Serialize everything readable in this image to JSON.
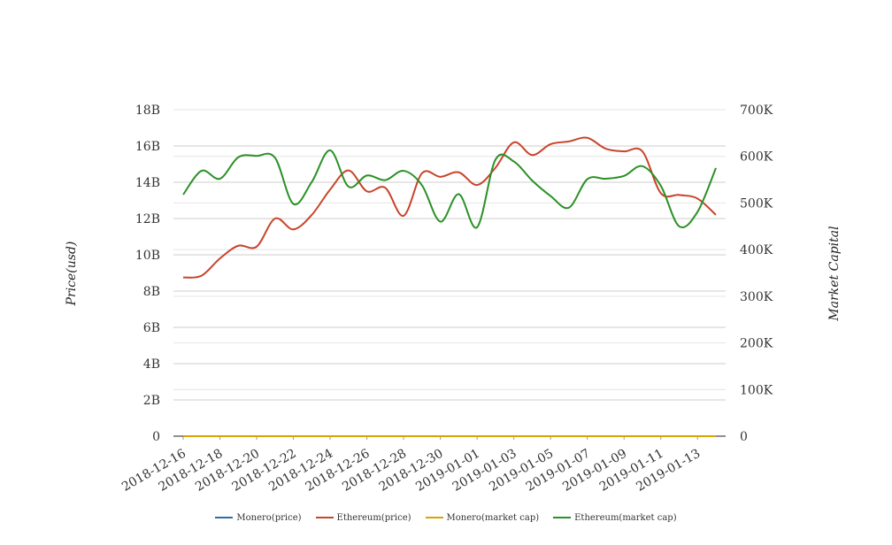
{
  "chart_data": {
    "type": "line",
    "title": "",
    "ylabel_left": "Price(usd)",
    "ylabel_right": "Market Capital",
    "y_left": {
      "min": 0,
      "max": 18000000000,
      "ticks": [
        0,
        2000000000,
        4000000000,
        6000000000,
        8000000000,
        10000000000,
        12000000000,
        14000000000,
        16000000000,
        18000000000
      ],
      "tick_labels": [
        "0",
        "2B",
        "4B",
        "6B",
        "8B",
        "10B",
        "12B",
        "14B",
        "16B",
        "18B"
      ]
    },
    "y_right": {
      "min": 0,
      "max": 700000,
      "ticks": [
        0,
        100000,
        200000,
        300000,
        400000,
        500000,
        600000,
        700000
      ],
      "tick_labels": [
        "0",
        "100K",
        "200K",
        "300K",
        "400K",
        "500K",
        "600K",
        "700K"
      ]
    },
    "x_tick_labels": [
      "2018-12-16",
      "2018-12-18",
      "2018-12-20",
      "2018-12-22",
      "2018-12-24",
      "2018-12-26",
      "2018-12-28",
      "2018-12-30",
      "2019-01-01",
      "2019-01-03",
      "2019-01-05",
      "2019-01-07",
      "2019-01-09",
      "2019-01-11",
      "2019-01-13"
    ],
    "dates": [
      "2018-12-16",
      "2018-12-17",
      "2018-12-18",
      "2018-12-19",
      "2018-12-20",
      "2018-12-21",
      "2018-12-22",
      "2018-12-23",
      "2018-12-24",
      "2018-12-25",
      "2018-12-26",
      "2018-12-27",
      "2018-12-28",
      "2018-12-29",
      "2018-12-30",
      "2018-12-31",
      "2019-01-01",
      "2019-01-02",
      "2019-01-03",
      "2019-01-04",
      "2019-01-05",
      "2019-01-06",
      "2019-01-07",
      "2019-01-08",
      "2019-01-09",
      "2019-01-10",
      "2019-01-11",
      "2019-01-12",
      "2019-01-13",
      "2019-01-14"
    ],
    "grid": true,
    "legend_position": "bottom",
    "series": [
      {
        "name": "Monero(price)",
        "axis": "left",
        "color": "#2e6fa8",
        "values": [
          45,
          46,
          47,
          48,
          49,
          48,
          47,
          46,
          47,
          48,
          47,
          46,
          45,
          46,
          47,
          48,
          47,
          47,
          49,
          50,
          48,
          47,
          48,
          49,
          50,
          49,
          48,
          47,
          46,
          45
        ]
      },
      {
        "name": "Ethereum(price)",
        "axis": "left",
        "color": "#c8442a",
        "values": [
          8750000000,
          8850000000,
          9800000000,
          10500000000,
          10450000000,
          12000000000,
          11400000000,
          12200000000,
          13600000000,
          14650000000,
          13500000000,
          13700000000,
          12150000000,
          14500000000,
          14300000000,
          14550000000,
          13850000000,
          14800000000,
          16200000000,
          15500000000,
          16100000000,
          16250000000,
          16450000000,
          15850000000,
          15700000000,
          15700000000,
          13400000000,
          13300000000,
          13100000000,
          12200000000
        ]
      },
      {
        "name": "Monero(market cap)",
        "axis": "right",
        "color": "#d9a400",
        "values": [
          0,
          0,
          0,
          0,
          0,
          0,
          0,
          0,
          0,
          0,
          0,
          0,
          0,
          0,
          0,
          0,
          0,
          0,
          0,
          0,
          0,
          0,
          0,
          0,
          0,
          0,
          0,
          0,
          0,
          0
        ]
      },
      {
        "name": "Ethereum(market cap)",
        "axis": "right",
        "color": "#2a9125",
        "values": [
          518000,
          569000,
          552000,
          598000,
          601000,
          597000,
          498000,
          545000,
          613000,
          535000,
          559000,
          549000,
          569000,
          538000,
          460000,
          519000,
          448000,
          593000,
          589000,
          548000,
          515000,
          490000,
          551000,
          552000,
          558000,
          579000,
          537000,
          450000,
          481000,
          575000
        ]
      }
    ]
  }
}
